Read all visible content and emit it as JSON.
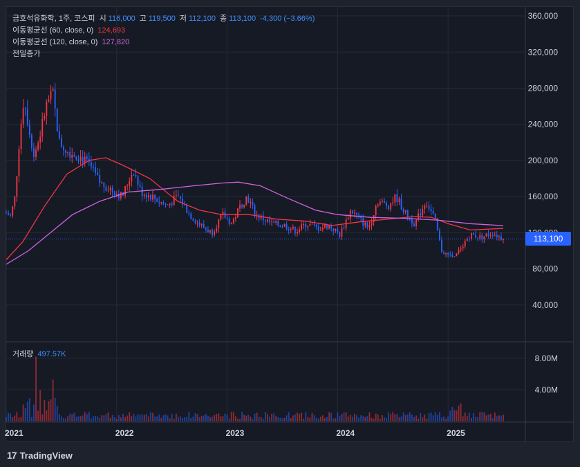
{
  "brand": {
    "name": "TradingView",
    "logo_icon": "tradingview-logo-icon",
    "logo_glyph": "17"
  },
  "legend": {
    "symbol": "금호석유화학, 1주, 코스피",
    "open_label": "시",
    "open": "116,000",
    "high_label": "고",
    "high": "119,500",
    "low_label": "저",
    "low": "112,100",
    "close_label": "종",
    "close": "113,100",
    "change": "-4,300 (−3.66%)",
    "ma60_label": "이동평균선 (60, close, 0)",
    "ma60_value": "124,693",
    "ma120_label": "이동평균선 (120, close, 0)",
    "ma120_value": "127,820",
    "prev_close_label": "전일종가",
    "volume_label": "거래량",
    "volume_value": "497.57K"
  },
  "price_tag": "113,100",
  "colors": {
    "up": "#f23645",
    "down": "#2962ff",
    "ma60": "#f23645",
    "ma120": "#d064e0",
    "grid": "#262a35",
    "text": "#d1d4dc",
    "bg": "#161a25",
    "tag": "#2962ff"
  },
  "chart_data": {
    "type": "candlestick",
    "symbol": "금호석유화학",
    "interval": "1주",
    "market": "코스피",
    "price_axis": {
      "range": [
        0,
        370000
      ],
      "ticks": [
        40000,
        80000,
        120000,
        160000,
        200000,
        240000,
        280000,
        320000,
        360000
      ],
      "tick_labels": [
        "40,000",
        "80,000",
        "120,000",
        "160,000",
        "200,000",
        "240,000",
        "280,000",
        "320,000",
        "360,000"
      ]
    },
    "volume_axis": {
      "range": [
        0,
        10000000
      ],
      "ticks": [
        4000000,
        8000000
      ],
      "tick_labels": [
        "4.00M",
        "8.00M"
      ]
    },
    "time_axis": {
      "range": [
        2021.0,
        2025.7
      ],
      "ticks": [
        2021,
        2022,
        2023,
        2024,
        2025
      ],
      "tick_labels": [
        "2021",
        "2022",
        "2023",
        "2024",
        "2025"
      ]
    },
    "last_close": 113100,
    "price_anchors": [
      [
        2021.0,
        142000
      ],
      [
        2021.04,
        138000
      ],
      [
        2021.08,
        160000
      ],
      [
        2021.12,
        225000
      ],
      [
        2021.16,
        270000
      ],
      [
        2021.2,
        240000
      ],
      [
        2021.25,
        205000
      ],
      [
        2021.3,
        225000
      ],
      [
        2021.36,
        260000
      ],
      [
        2021.42,
        275000
      ],
      [
        2021.48,
        220000
      ],
      [
        2021.56,
        210000
      ],
      [
        2021.66,
        205000
      ],
      [
        2021.75,
        195000
      ],
      [
        2021.85,
        175000
      ],
      [
        2021.95,
        168000
      ],
      [
        2022.05,
        160000
      ],
      [
        2022.15,
        190000
      ],
      [
        2022.22,
        165000
      ],
      [
        2022.32,
        160000
      ],
      [
        2022.45,
        150000
      ],
      [
        2022.56,
        160000
      ],
      [
        2022.66,
        140000
      ],
      [
        2022.76,
        128000
      ],
      [
        2022.86,
        120000
      ],
      [
        2022.96,
        140000
      ],
      [
        2023.04,
        130000
      ],
      [
        2023.12,
        150000
      ],
      [
        2023.18,
        160000
      ],
      [
        2023.26,
        140000
      ],
      [
        2023.4,
        130000
      ],
      [
        2023.52,
        128000
      ],
      [
        2023.62,
        122000
      ],
      [
        2023.72,
        130000
      ],
      [
        2023.82,
        125000
      ],
      [
        2023.92,
        128000
      ],
      [
        2024.02,
        118000
      ],
      [
        2024.12,
        145000
      ],
      [
        2024.2,
        135000
      ],
      [
        2024.28,
        125000
      ],
      [
        2024.36,
        155000
      ],
      [
        2024.46,
        150000
      ],
      [
        2024.53,
        160000
      ],
      [
        2024.62,
        140000
      ],
      [
        2024.7,
        130000
      ],
      [
        2024.8,
        155000
      ],
      [
        2024.88,
        135000
      ],
      [
        2024.94,
        100000
      ],
      [
        2025.0,
        95000
      ],
      [
        2025.06,
        92000
      ],
      [
        2025.12,
        105000
      ],
      [
        2025.2,
        118000
      ],
      [
        2025.3,
        115000
      ],
      [
        2025.4,
        120000
      ],
      [
        2025.46,
        116000
      ],
      [
        2025.5,
        113100
      ]
    ],
    "moving_averages": [
      {
        "name": "이동평균선 (60, close, 0)",
        "last": 124693,
        "color": "#f23645",
        "points": [
          [
            2021.0,
            90000
          ],
          [
            2021.15,
            110000
          ],
          [
            2021.35,
            150000
          ],
          [
            2021.55,
            185000
          ],
          [
            2021.75,
            200000
          ],
          [
            2021.9,
            203000
          ],
          [
            2022.05,
            195000
          ],
          [
            2022.3,
            180000
          ],
          [
            2022.55,
            155000
          ],
          [
            2022.75,
            145000
          ],
          [
            2022.95,
            140000
          ],
          [
            2023.2,
            140000
          ],
          [
            2023.45,
            135000
          ],
          [
            2023.7,
            133000
          ],
          [
            2023.95,
            128000
          ],
          [
            2024.2,
            132000
          ],
          [
            2024.45,
            135000
          ],
          [
            2024.7,
            138000
          ],
          [
            2024.85,
            137000
          ],
          [
            2025.0,
            130000
          ],
          [
            2025.2,
            123000
          ],
          [
            2025.5,
            124693
          ]
        ]
      },
      {
        "name": "이동평균선 (120, close, 0)",
        "last": 127820,
        "color": "#d064e0",
        "points": [
          [
            2021.0,
            85000
          ],
          [
            2021.2,
            100000
          ],
          [
            2021.4,
            120000
          ],
          [
            2021.6,
            140000
          ],
          [
            2021.85,
            155000
          ],
          [
            2022.1,
            165000
          ],
          [
            2022.4,
            168000
          ],
          [
            2022.7,
            172000
          ],
          [
            2022.95,
            175000
          ],
          [
            2023.1,
            176000
          ],
          [
            2023.3,
            172000
          ],
          [
            2023.55,
            158000
          ],
          [
            2023.8,
            145000
          ],
          [
            2024.0,
            140000
          ],
          [
            2024.3,
            137000
          ],
          [
            2024.6,
            136000
          ],
          [
            2024.9,
            134000
          ],
          [
            2025.2,
            130000
          ],
          [
            2025.5,
            127820
          ]
        ]
      }
    ]
  }
}
